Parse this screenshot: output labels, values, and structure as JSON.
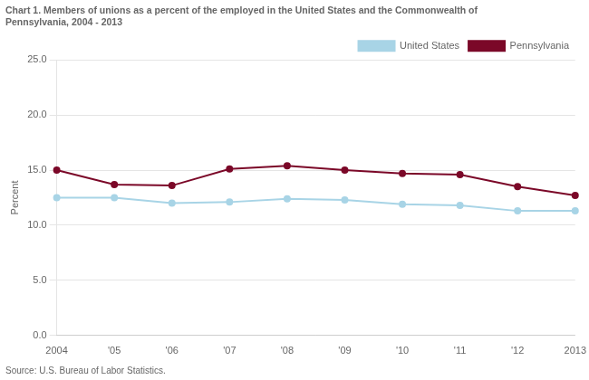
{
  "chart_data": {
    "type": "line",
    "title": [
      "Chart 1. Members of unions as a percent of the employed in the United States and the Commonwealth of",
      "Pennsylvania, 2004 - 2013"
    ],
    "ylabel": "Percent",
    "source": "Source: U.S. Bureau of Labor Statistics.",
    "categories": [
      "2004",
      "'05",
      "'06",
      "'07",
      "'08",
      "'09",
      "'10",
      "'11",
      "'12",
      "2013"
    ],
    "series": [
      {
        "name": "United States",
        "color": "#a8d4e6",
        "marker": "circle",
        "values": [
          12.5,
          12.5,
          12.0,
          12.1,
          12.4,
          12.3,
          11.9,
          11.8,
          11.3,
          11.3
        ]
      },
      {
        "name": "Pennsylvania",
        "color": "#7b0828",
        "marker": "circle",
        "values": [
          15.0,
          13.7,
          13.6,
          15.1,
          15.4,
          15.0,
          14.7,
          14.6,
          13.5,
          12.7
        ]
      }
    ],
    "ylim": [
      0.0,
      25.0
    ],
    "yticks": [
      {
        "value": 0.0,
        "label": "0.0"
      },
      {
        "value": 5.0,
        "label": "5.0"
      },
      {
        "value": 10.0,
        "label": "10.0"
      },
      {
        "value": 15.0,
        "label": "15.0"
      },
      {
        "value": 20.0,
        "label": "20.0"
      },
      {
        "value": 25.0,
        "label": "25.0"
      }
    ],
    "grid": true,
    "legend": "upper right"
  }
}
